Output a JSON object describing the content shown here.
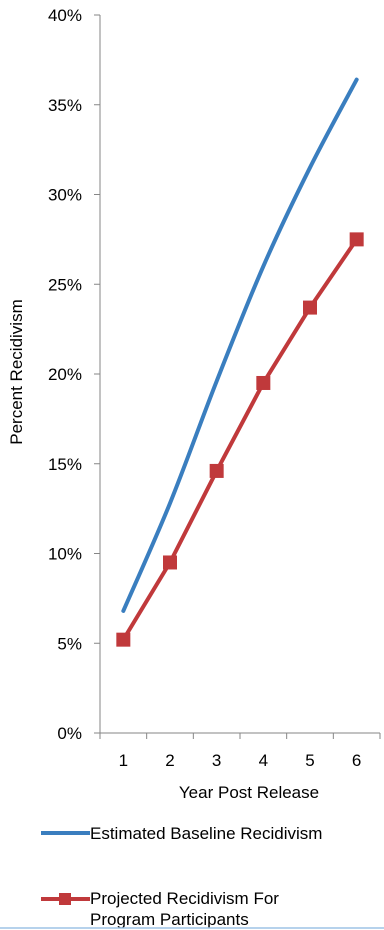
{
  "chart_data": {
    "type": "line",
    "title": "",
    "xlabel": "Year Post Release",
    "ylabel": "Percent Recidivism",
    "categories": [
      "1",
      "2",
      "3",
      "4",
      "5",
      "6"
    ],
    "y_ticks": [
      "0%",
      "5%",
      "10%",
      "15%",
      "20%",
      "25%",
      "30%",
      "35%",
      "40%"
    ],
    "ylim": [
      0,
      40
    ],
    "grid": false,
    "legend_position": "bottom",
    "series": [
      {
        "name": "Estimated Baseline Recidivism",
        "color": "#3a7ebf",
        "marker": "none",
        "values": [
          6.8,
          12.8,
          19.6,
          26.0,
          31.5,
          36.4
        ]
      },
      {
        "name": "Projected Recidivism For Program Participants",
        "name_lines": [
          "Projected Recidivism For",
          "Program Participants"
        ],
        "color": "#c0393b",
        "marker": "square",
        "values": [
          5.2,
          9.5,
          14.6,
          19.5,
          23.7,
          27.5
        ]
      }
    ]
  }
}
